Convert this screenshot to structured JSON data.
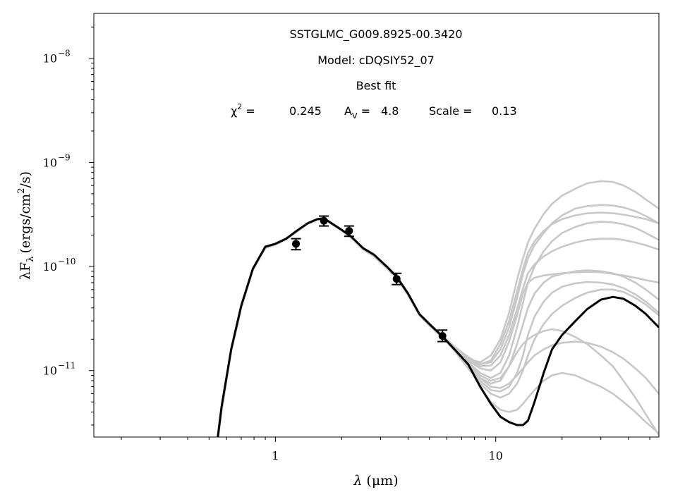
{
  "chart_data": {
    "type": "line",
    "x_scale": "log",
    "y_scale": "log",
    "xlim": [
      0.15,
      55
    ],
    "ylim": [
      2.3e-12,
      2.7e-08
    ],
    "xlabel_parts": {
      "lambda": "λ",
      "unit": "(μm)"
    },
    "ylabel_parts": {
      "prefix": "λF",
      "sub": "λ",
      "open": "(ergs/cm",
      "sup": "2",
      "close": "/s)"
    },
    "x_ticks": [
      {
        "value": 1,
        "label": "1"
      },
      {
        "value": 10,
        "label": "10"
      }
    ],
    "y_ticks": [
      {
        "value": 1e-11,
        "base": "10",
        "exp": "−11"
      },
      {
        "value": 1e-10,
        "base": "10",
        "exp": "−10"
      },
      {
        "value": 1e-09,
        "base": "10",
        "exp": "−9"
      },
      {
        "value": 1e-08,
        "base": "10",
        "exp": "−8"
      }
    ],
    "annotations": {
      "source": "SSTGLMC_G009.8925-00.3420",
      "model": "Model: cDQSIY52_07",
      "fit": "Best fit",
      "chi_symbol": "χ",
      "chi_sup": "2",
      "chi_eq": " =",
      "chi_value": "0.245",
      "av_A": "A",
      "av_sub": "V",
      "av_eq": " =",
      "av_value": "4.8",
      "scale_text": "Scale =",
      "scale_value": "0.13"
    },
    "observed_points": [
      {
        "x": 1.24,
        "y": 1.65e-10,
        "yerr_lo": 1.45e-10,
        "yerr_hi": 1.85e-10
      },
      {
        "x": 1.66,
        "y": 2.75e-10,
        "yerr_lo": 2.45e-10,
        "yerr_hi": 3.05e-10
      },
      {
        "x": 2.16,
        "y": 2.2e-10,
        "yerr_lo": 1.95e-10,
        "yerr_hi": 2.45e-10
      },
      {
        "x": 3.55,
        "y": 7.6e-11,
        "yerr_lo": 6.7e-11,
        "yerr_hi": 8.6e-11
      },
      {
        "x": 5.73,
        "y": 2.15e-11,
        "yerr_lo": 1.9e-11,
        "yerr_hi": 2.45e-11
      }
    ],
    "best_fit": {
      "color": "#000000",
      "x": [
        0.54,
        0.57,
        0.63,
        0.7,
        0.79,
        0.9,
        1.0,
        1.12,
        1.25,
        1.4,
        1.55,
        1.66,
        1.8,
        2.0,
        2.2,
        2.5,
        2.8,
        3.2,
        3.55,
        4.0,
        4.5,
        5.0,
        5.7,
        6.5,
        7.5,
        8.5,
        9.5,
        10.5,
        11.5,
        12.5,
        13.3,
        14.0,
        15.0,
        16.5,
        18.0,
        20.0,
        23.0,
        26.0,
        30.0,
        34.0,
        38.0,
        43.0,
        48.0,
        55.0
      ],
      "y": [
        1.8e-12,
        4.5e-12,
        1.6e-11,
        4.2e-11,
        9.5e-11,
        1.55e-10,
        1.65e-10,
        1.85e-10,
        2.2e-10,
        2.6e-10,
        2.85e-10,
        2.9e-10,
        2.6e-10,
        2.25e-10,
        1.95e-10,
        1.5e-10,
        1.3e-10,
        1e-10,
        8e-11,
        5.5e-11,
        3.5e-11,
        2.8e-11,
        2.15e-11,
        1.6e-11,
        1.15e-11,
        7e-12,
        4.8e-12,
        3.6e-12,
        3.2e-12,
        3e-12,
        3e-12,
        3.3e-12,
        5e-12,
        9.5e-12,
        1.6e-11,
        2.2e-11,
        3e-11,
        3.9e-11,
        4.8e-11,
        5.1e-11,
        4.9e-11,
        4.2e-11,
        3.5e-11,
        2.6e-11
      ]
    },
    "other_models": {
      "color": "#c8c8c8",
      "x": [
        0.54,
        0.57,
        0.63,
        0.7,
        0.79,
        0.9,
        1.0,
        1.12,
        1.25,
        1.4,
        1.55,
        1.66,
        1.8,
        2.0,
        2.2,
        2.5,
        2.8,
        3.2,
        3.55,
        4.0,
        4.5,
        5.0,
        5.7,
        6.5,
        7.5,
        8.5,
        9.5,
        10.5,
        11.5,
        12.5,
        13.3,
        14.0,
        15.0,
        16.5,
        18.0,
        20.0,
        23.0,
        26.0,
        30.0,
        34.0,
        38.0,
        43.0,
        48.0,
        55.0
      ],
      "series": [
        {
          "y": [
            1.7e-12,
            4e-12,
            1.5e-11,
            4e-11,
            9.2e-11,
            1.5e-10,
            1.62e-10,
            1.82e-10,
            2.15e-10,
            2.55e-10,
            2.8e-10,
            2.85e-10,
            2.55e-10,
            2.2e-10,
            1.9e-10,
            1.45e-10,
            1.25e-10,
            9.6e-11,
            7.7e-11,
            5.3e-11,
            3.4e-11,
            2.7e-11,
            2.1e-11,
            1.6e-11,
            1.3e-11,
            1.2e-11,
            1.4e-11,
            2e-11,
            3.6e-11,
            7.5e-11,
            1.2e-10,
            1.7e-10,
            2.3e-10,
            3.2e-10,
            4e-10,
            4.8e-10,
            5.6e-10,
            6.3e-10,
            6.6e-10,
            6.5e-10,
            6e-10,
            5.2e-10,
            4.4e-10,
            3.6e-10
          ]
        },
        {
          "y": [
            1.9e-12,
            4.6e-12,
            1.6e-11,
            4.3e-11,
            9.6e-11,
            1.55e-10,
            1.66e-10,
            1.86e-10,
            2.2e-10,
            2.6e-10,
            2.86e-10,
            2.9e-10,
            2.6e-10,
            2.25e-10,
            1.96e-10,
            1.5e-10,
            1.3e-10,
            1e-10,
            8e-11,
            5.5e-11,
            3.5e-11,
            2.8e-11,
            2.2e-11,
            1.7e-11,
            1.35e-11,
            1.15e-11,
            1.2e-11,
            1.6e-11,
            2.6e-11,
            5e-11,
            8.5e-11,
            1.2e-10,
            1.6e-10,
            2.1e-10,
            2.6e-10,
            3.1e-10,
            3.6e-10,
            3.8e-10,
            3.9e-10,
            3.85e-10,
            3.7e-10,
            3.4e-10,
            3.05e-10,
            2.6e-10
          ]
        },
        {
          "y": [
            1.6e-12,
            4.2e-12,
            1.55e-11,
            4.1e-11,
            9.4e-11,
            1.52e-10,
            1.64e-10,
            1.84e-10,
            2.18e-10,
            2.58e-10,
            2.82e-10,
            2.88e-10,
            2.58e-10,
            2.22e-10,
            1.93e-10,
            1.48e-10,
            1.28e-10,
            9.8e-11,
            7.9e-11,
            5.4e-11,
            3.45e-11,
            2.75e-11,
            2.1e-11,
            1.55e-11,
            1.1e-11,
            8.5e-12,
            7.5e-12,
            8e-12,
            1.1e-11,
            1.8e-11,
            2.8e-11,
            4e-11,
            5.5e-11,
            7e-11,
            8e-11,
            8.5e-11,
            9e-11,
            9.2e-11,
            9e-11,
            8.6e-11,
            8e-11,
            7e-11,
            6e-11,
            4.8e-11
          ]
        },
        {
          "y": [
            1.8e-12,
            4.4e-12,
            1.58e-11,
            4.2e-11,
            9.5e-11,
            1.54e-10,
            1.65e-10,
            1.85e-10,
            2.2e-10,
            2.6e-10,
            2.84e-10,
            2.9e-10,
            2.6e-10,
            2.24e-10,
            1.95e-10,
            1.5e-10,
            1.3e-10,
            1e-10,
            8e-11,
            5.5e-11,
            3.5e-11,
            2.8e-11,
            2.15e-11,
            1.6e-11,
            1.2e-11,
            9.5e-12,
            8.5e-12,
            9.5e-12,
            1.4e-11,
            2.6e-11,
            4.5e-11,
            7e-11,
            1e-10,
            1.4e-10,
            1.75e-10,
            2.1e-10,
            2.4e-10,
            2.6e-10,
            2.7e-10,
            2.65e-10,
            2.55e-10,
            2.35e-10,
            2.1e-10,
            1.8e-10
          ]
        },
        {
          "y": [
            1.7e-12,
            4.3e-12,
            1.56e-11,
            4.15e-11,
            9.4e-11,
            1.53e-10,
            1.64e-10,
            1.84e-10,
            2.19e-10,
            2.58e-10,
            2.83e-10,
            2.89e-10,
            2.59e-10,
            2.23e-10,
            1.94e-10,
            1.49e-10,
            1.29e-10,
            9.9e-11,
            7.9e-11,
            5.45e-11,
            3.48e-11,
            2.78e-11,
            2.12e-11,
            1.55e-11,
            1.05e-11,
            7.5e-12,
            6e-12,
            5.5e-12,
            6e-12,
            7.5e-12,
            1e-11,
            1.4e-11,
            2e-11,
            2.8e-11,
            3.5e-11,
            4.2e-11,
            5e-11,
            5.6e-11,
            6e-11,
            6e-11,
            5.7e-11,
            5e-11,
            4.3e-11,
            3.4e-11
          ]
        },
        {
          "y": [
            1.75e-12,
            4.35e-12,
            1.57e-11,
            4.18e-11,
            9.45e-11,
            1.54e-10,
            1.65e-10,
            1.85e-10,
            2.2e-10,
            2.59e-10,
            2.84e-10,
            2.9e-10,
            2.6e-10,
            2.24e-10,
            1.95e-10,
            1.5e-10,
            1.3e-10,
            1e-10,
            8e-11,
            5.5e-11,
            3.5e-11,
            2.8e-11,
            2.15e-11,
            1.6e-11,
            1.1e-11,
            7e-12,
            5e-12,
            4.2e-12,
            4e-12,
            4.2e-12,
            4.8e-12,
            5.5e-12,
            6.5e-12,
            8e-12,
            9e-12,
            9.5e-12,
            9e-12,
            8e-12,
            7e-12,
            6e-12,
            5e-12,
            4e-12,
            3.2e-12,
            2.5e-12
          ]
        },
        {
          "y": [
            1.8e-12,
            4.5e-12,
            1.6e-11,
            4.2e-11,
            9.5e-11,
            1.55e-10,
            1.65e-10,
            1.85e-10,
            2.2e-10,
            2.6e-10,
            2.85e-10,
            2.9e-10,
            2.6e-10,
            2.25e-10,
            1.95e-10,
            1.5e-10,
            1.3e-10,
            1e-10,
            8e-11,
            5.5e-11,
            3.5e-11,
            2.8e-11,
            2.15e-11,
            1.62e-11,
            1.25e-11,
            1.05e-11,
            1e-11,
            1.2e-11,
            1.9e-11,
            3.4e-11,
            5.5e-11,
            7e-11,
            7.8e-11,
            8.2e-11,
            8.4e-11,
            8.6e-11,
            8.8e-11,
            8.9e-11,
            8.8e-11,
            8.5e-11,
            8.2e-11,
            7.8e-11,
            7.4e-11,
            7e-11
          ]
        },
        {
          "y": [
            1.7e-12,
            4.3e-12,
            1.56e-11,
            4.15e-11,
            9.4e-11,
            1.53e-10,
            1.64e-10,
            1.84e-10,
            2.19e-10,
            2.58e-10,
            2.83e-10,
            2.89e-10,
            2.59e-10,
            2.23e-10,
            1.94e-10,
            1.49e-10,
            1.29e-10,
            9.9e-11,
            7.9e-11,
            5.45e-11,
            3.48e-11,
            2.78e-11,
            2.12e-11,
            1.58e-11,
            1.15e-11,
            9e-12,
            8e-12,
            8.5e-12,
            1.1e-11,
            1.5e-11,
            1.8e-11,
            2e-11,
            2.2e-11,
            2.4e-11,
            2.5e-11,
            2.4e-11,
            2.1e-11,
            1.8e-11,
            1.4e-11,
            1.1e-11,
            8e-12,
            5.5e-12,
            3.8e-12,
            2.4e-12
          ]
        },
        {
          "y": [
            1.8e-12,
            4.5e-12,
            1.6e-11,
            4.2e-11,
            9.5e-11,
            1.55e-10,
            1.65e-10,
            1.85e-10,
            2.2e-10,
            2.6e-10,
            2.85e-10,
            2.9e-10,
            2.6e-10,
            2.25e-10,
            1.95e-10,
            1.5e-10,
            1.3e-10,
            1e-10,
            8e-11,
            5.5e-11,
            3.5e-11,
            2.8e-11,
            2.15e-11,
            1.6e-11,
            1.3e-11,
            1.15e-11,
            1.25e-11,
            1.8e-11,
            3e-11,
            5.8e-11,
            9.5e-11,
            1.35e-10,
            1.75e-10,
            2.2e-10,
            2.55e-10,
            2.85e-10,
            3.1e-10,
            3.25e-10,
            3.3e-10,
            3.25e-10,
            3.15e-10,
            3e-10,
            2.85e-10,
            2.6e-10
          ]
        },
        {
          "y": [
            1.7e-12,
            4.3e-12,
            1.56e-11,
            4.15e-11,
            9.4e-11,
            1.53e-10,
            1.64e-10,
            1.84e-10,
            2.19e-10,
            2.58e-10,
            2.83e-10,
            2.89e-10,
            2.59e-10,
            2.23e-10,
            1.94e-10,
            1.49e-10,
            1.29e-10,
            9.9e-11,
            7.9e-11,
            5.45e-11,
            3.48e-11,
            2.78e-11,
            2.12e-11,
            1.55e-11,
            1.08e-11,
            8e-12,
            6.5e-12,
            6.3e-12,
            7e-12,
            9.5e-12,
            1.4e-11,
            2.2e-11,
            3.3e-11,
            4.6e-11,
            5.6e-11,
            6.4e-11,
            6.9e-11,
            7.1e-11,
            7e-11,
            6.7e-11,
            6.2e-11,
            5.4e-11,
            4.6e-11,
            3.6e-11
          ]
        },
        {
          "y": [
            1.75e-12,
            4.35e-12,
            1.57e-11,
            4.18e-11,
            9.45e-11,
            1.54e-10,
            1.65e-10,
            1.85e-10,
            2.2e-10,
            2.59e-10,
            2.84e-10,
            2.9e-10,
            2.6e-10,
            2.24e-10,
            1.95e-10,
            1.5e-10,
            1.3e-10,
            1e-10,
            8e-11,
            5.5e-11,
            3.5e-11,
            2.8e-11,
            2.15e-11,
            1.58e-11,
            1.12e-11,
            8.5e-12,
            7e-12,
            6.8e-12,
            7.5e-12,
            9e-12,
            1.05e-11,
            1.2e-11,
            1.4e-11,
            1.6e-11,
            1.75e-11,
            1.85e-11,
            1.9e-11,
            1.85e-11,
            1.7e-11,
            1.5e-11,
            1.3e-11,
            1.05e-11,
            8.5e-12,
            6e-12
          ]
        },
        {
          "y": [
            1.8e-12,
            4.5e-12,
            1.6e-11,
            4.2e-11,
            9.5e-11,
            1.55e-10,
            1.65e-10,
            1.85e-10,
            2.2e-10,
            2.6e-10,
            2.85e-10,
            2.9e-10,
            2.6e-10,
            2.25e-10,
            1.95e-10,
            1.5e-10,
            1.3e-10,
            1e-10,
            8e-11,
            5.5e-11,
            3.5e-11,
            2.8e-11,
            2.15e-11,
            1.62e-11,
            1.28e-11,
            1.1e-11,
            1.12e-11,
            1.4e-11,
            2.2e-11,
            3.9e-11,
            6.2e-11,
            8.6e-11,
            1.05e-10,
            1.25e-10,
            1.4e-10,
            1.55e-10,
            1.7e-10,
            1.8e-10,
            1.85e-10,
            1.85e-10,
            1.8e-10,
            1.7e-10,
            1.6e-10,
            1.45e-10
          ]
        }
      ]
    }
  }
}
